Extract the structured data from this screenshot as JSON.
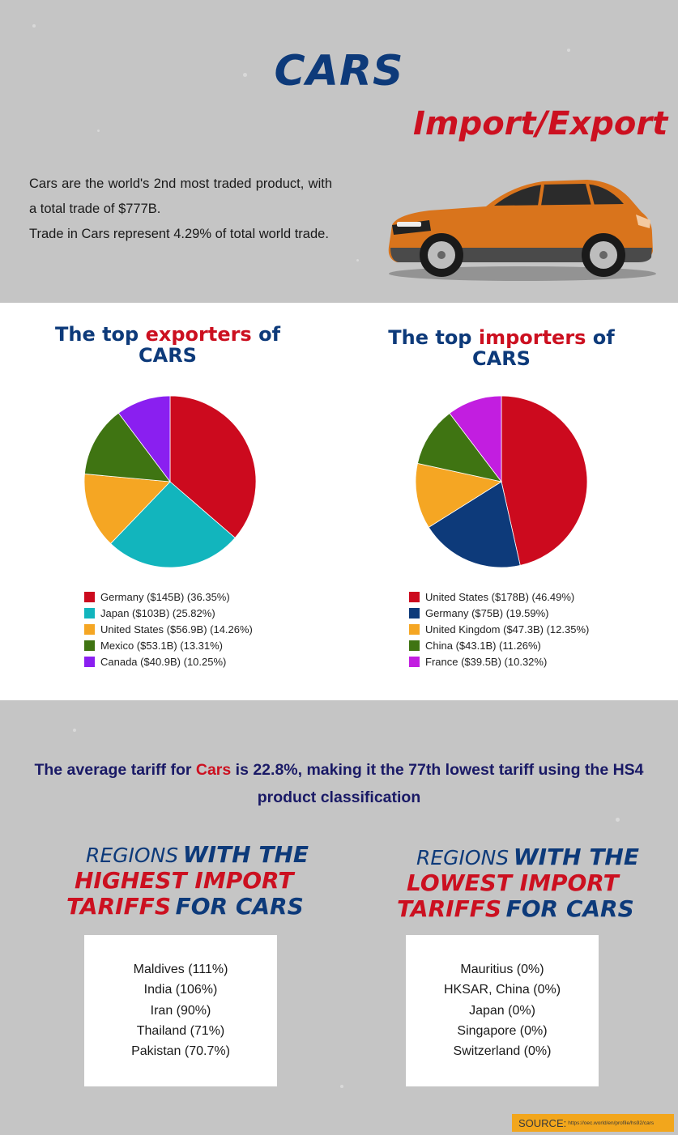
{
  "header": {
    "title": "CARS",
    "subtitle": "Import/Export"
  },
  "intro": {
    "line1": "Cars are the world's 2nd most traded product, with a total trade of $777B.",
    "line2": "Trade in Cars represent 4.29% of total world trade."
  },
  "exporters": {
    "title_pre": "The top ",
    "title_hl": "exporters",
    "title_post": " of",
    "title_line2": "CARS"
  },
  "importers": {
    "title_pre": "The top ",
    "title_hl": "importers",
    "title_post": " of",
    "title_line2": "CARS"
  },
  "chart_data": [
    {
      "type": "pie",
      "labels": [
        "Germany ($145B) (36.35%)",
        "Japan ($103B) (25.82%)",
        "United States ($56.9B) (14.26%)",
        "Mexico ($53.1B) (13.31%)",
        "Canada ($40.9B) (10.25%)"
      ],
      "values": [
        36.35,
        25.82,
        14.26,
        13.31,
        10.25
      ],
      "colors": [
        "#cc0a1e",
        "#12b5bd",
        "#f5a623",
        "#3f7412",
        "#8a1ff0"
      ]
    },
    {
      "type": "pie",
      "labels": [
        "United States ($178B) (46.49%)",
        "Germany ($75B) (19.59%)",
        "United Kingdom ($47.3B) (12.35%)",
        "China ($43.1B) (11.26%)",
        "France ($39.5B) (10.32%)"
      ],
      "values": [
        46.49,
        19.59,
        12.35,
        11.26,
        10.32
      ],
      "colors": [
        "#cc0a1e",
        "#0d3a7a",
        "#f5a623",
        "#3f7412",
        "#c21ee0"
      ]
    }
  ],
  "tariff": {
    "pre": "The average tariff for ",
    "hl": "Cars",
    "post": " is 22.8%, making it the 77th lowest tariff using the HS4 product classification"
  },
  "highest": {
    "w1": "REGIONS",
    "w2": "WITH THE",
    "w3": "HIGHEST IMPORT",
    "w4": "TARIFFS",
    "w5": "FOR CARS",
    "items": [
      "Maldives (111%)",
      "India (106%)",
      "Iran (90%)",
      "Thailand (71%)",
      "Pakistan (70.7%)"
    ]
  },
  "lowest": {
    "w1": "REGIONS",
    "w2": "WITH THE",
    "w3": "LOWEST IMPORT",
    "w4": "TARIFFS",
    "w5": "FOR CARS",
    "items": [
      "Mauritius (0%)",
      "HKSAR, China (0%)",
      "Japan (0%)",
      "Singapore (0%)",
      "Switzerland (0%)"
    ]
  },
  "source": {
    "label": "SOURCE:",
    "url": "https://oec.world/en/profile/hs92/cars"
  }
}
